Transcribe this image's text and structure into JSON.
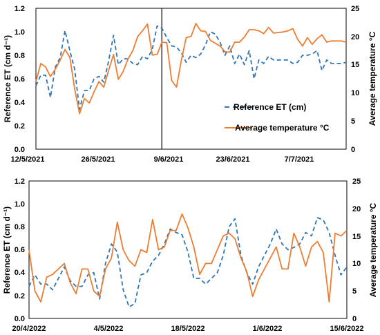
{
  "chart_data": [
    {
      "type": "line",
      "ylabel_left": "Reference ET (cm d⁻¹)",
      "ylabel_right": "Average temperature °C",
      "ylim_left": [
        0,
        1.2
      ],
      "ylim_right": [
        0,
        25
      ],
      "y_ticks_left": [
        "0.0",
        "0.2",
        "0.4",
        "0.6",
        "0.8",
        "1.0",
        "1.2"
      ],
      "y_ticks_right": [
        "0",
        "5",
        "10",
        "15",
        "20",
        "25"
      ],
      "x_start": "12/5/2021",
      "x_end": "20/7/2021",
      "x_ticks": [
        "12/5/2021",
        "26/5/2021",
        "9/6/2021",
        "23/6/2021",
        "7/7/2021"
      ],
      "vertical_line": "9/6/2021",
      "legend": [
        "Reference ET (cm)",
        "Average temperature °C"
      ],
      "legend_position": "center-right",
      "series": [
        {
          "name": "Reference ET (cm)",
          "style": "dashed",
          "color": "#2E75B6",
          "axis": "left",
          "values": [
            0.54,
            0.63,
            0.63,
            0.44,
            0.7,
            0.78,
            1.01,
            0.84,
            0.68,
            0.34,
            0.5,
            0.5,
            0.6,
            0.62,
            0.57,
            0.75,
            0.97,
            0.72,
            0.77,
            0.77,
            0.73,
            0.72,
            0.79,
            0.77,
            0.85,
            1.05,
            1.03,
            0.95,
            0.88,
            0.87,
            0.82,
            0.74,
            0.8,
            0.78,
            0.81,
            0.89,
            1.0,
            0.98,
            0.91,
            0.8,
            0.88,
            0.73,
            0.81,
            0.72,
            0.84,
            0.6,
            0.76,
            0.73,
            0.79,
            0.76,
            0.76,
            0.76,
            0.76,
            0.73,
            0.74,
            0.8,
            0.8,
            0.81,
            0.84,
            0.67,
            0.76,
            0.73,
            0.73,
            0.73,
            0.74
          ]
        },
        {
          "name": "Average temperature °C",
          "style": "solid",
          "color": "#ED7D31",
          "axis": "right",
          "values": [
            12.0,
            15.2,
            14.6,
            12.9,
            14.2,
            15.8,
            17.7,
            16.3,
            10.7,
            6.3,
            9.0,
            8.2,
            10.2,
            12.0,
            11.0,
            14.0,
            16.8,
            12.4,
            13.8,
            16.0,
            17.5,
            20.0,
            21.0,
            22.2,
            16.7,
            16.8,
            19.0,
            18.9,
            12.2,
            11.0,
            15.8,
            19.8,
            20.0,
            22.3,
            21.0,
            20.9,
            19.3,
            18.8,
            18.3,
            17.3,
            17.2,
            19.0,
            19.0,
            19.9,
            21.2,
            21.2,
            21.0,
            20.5,
            21.6,
            20.6,
            20.7,
            20.8,
            21.0,
            21.4,
            19.5,
            18.3,
            19.8,
            18.6,
            19.6,
            20.3,
            19.0,
            19.2,
            19.2,
            19.2,
            19.0
          ]
        }
      ]
    },
    {
      "type": "line",
      "ylabel_left": "Reference ET (cm d⁻¹)",
      "ylabel_right": "Average temperature °C",
      "ylim_left": [
        0,
        1.2
      ],
      "ylim_right": [
        0,
        25
      ],
      "y_ticks_left": [
        "0.0",
        "0.2",
        "0.4",
        "0.6",
        "0.8",
        "1.0",
        "1.2"
      ],
      "y_ticks_right": [
        "0",
        "5",
        "10",
        "15",
        "20",
        "25"
      ],
      "x_start": "20/4/2022",
      "x_end": "15/6/2022",
      "x_ticks": [
        "20/4/2022",
        "4/5/2022",
        "18/5/2022",
        "1/6/2022",
        "15/6/2022"
      ],
      "series": [
        {
          "name": "Reference ET (cm)",
          "style": "dashed",
          "color": "#2E75B6",
          "axis": "left",
          "values": [
            0.28,
            0.38,
            0.3,
            0.3,
            0.25,
            0.35,
            0.45,
            0.33,
            0.28,
            0.28,
            0.38,
            0.4,
            0.17,
            0.48,
            0.65,
            0.58,
            0.25,
            0.1,
            0.13,
            0.38,
            0.4,
            0.5,
            0.55,
            0.65,
            0.78,
            0.75,
            0.73,
            0.58,
            0.35,
            0.35,
            0.3,
            0.35,
            0.4,
            0.55,
            0.8,
            0.87,
            0.55,
            0.4,
            0.3,
            0.45,
            0.55,
            0.65,
            0.78,
            0.65,
            0.6,
            0.62,
            0.65,
            0.75,
            0.72,
            0.88,
            0.86,
            0.75,
            0.55,
            0.38,
            0.45
          ]
        },
        {
          "name": "Average temperature °C",
          "style": "solid",
          "color": "#ED7D31",
          "axis": "right",
          "values": [
            12.5,
            5.0,
            3.0,
            7.5,
            8.0,
            9.0,
            10.0,
            6.5,
            4.5,
            9.0,
            9.0,
            5.0,
            4.0,
            9.0,
            11.0,
            17.5,
            12.5,
            10.5,
            9.5,
            12.5,
            12.0,
            18.0,
            12.5,
            13.0,
            16.0,
            16.0,
            19.0,
            16.5,
            13.0,
            8.0,
            10.0,
            10.0,
            12.5,
            15.0,
            15.5,
            14.5,
            11.0,
            8.5,
            4.0,
            7.0,
            9.0,
            11.0,
            13.0,
            9.0,
            9.0,
            15.5,
            13.0,
            9.5,
            13.0,
            14.0,
            12.0,
            3.0,
            15.5,
            15.0,
            16.0
          ]
        }
      ]
    }
  ]
}
